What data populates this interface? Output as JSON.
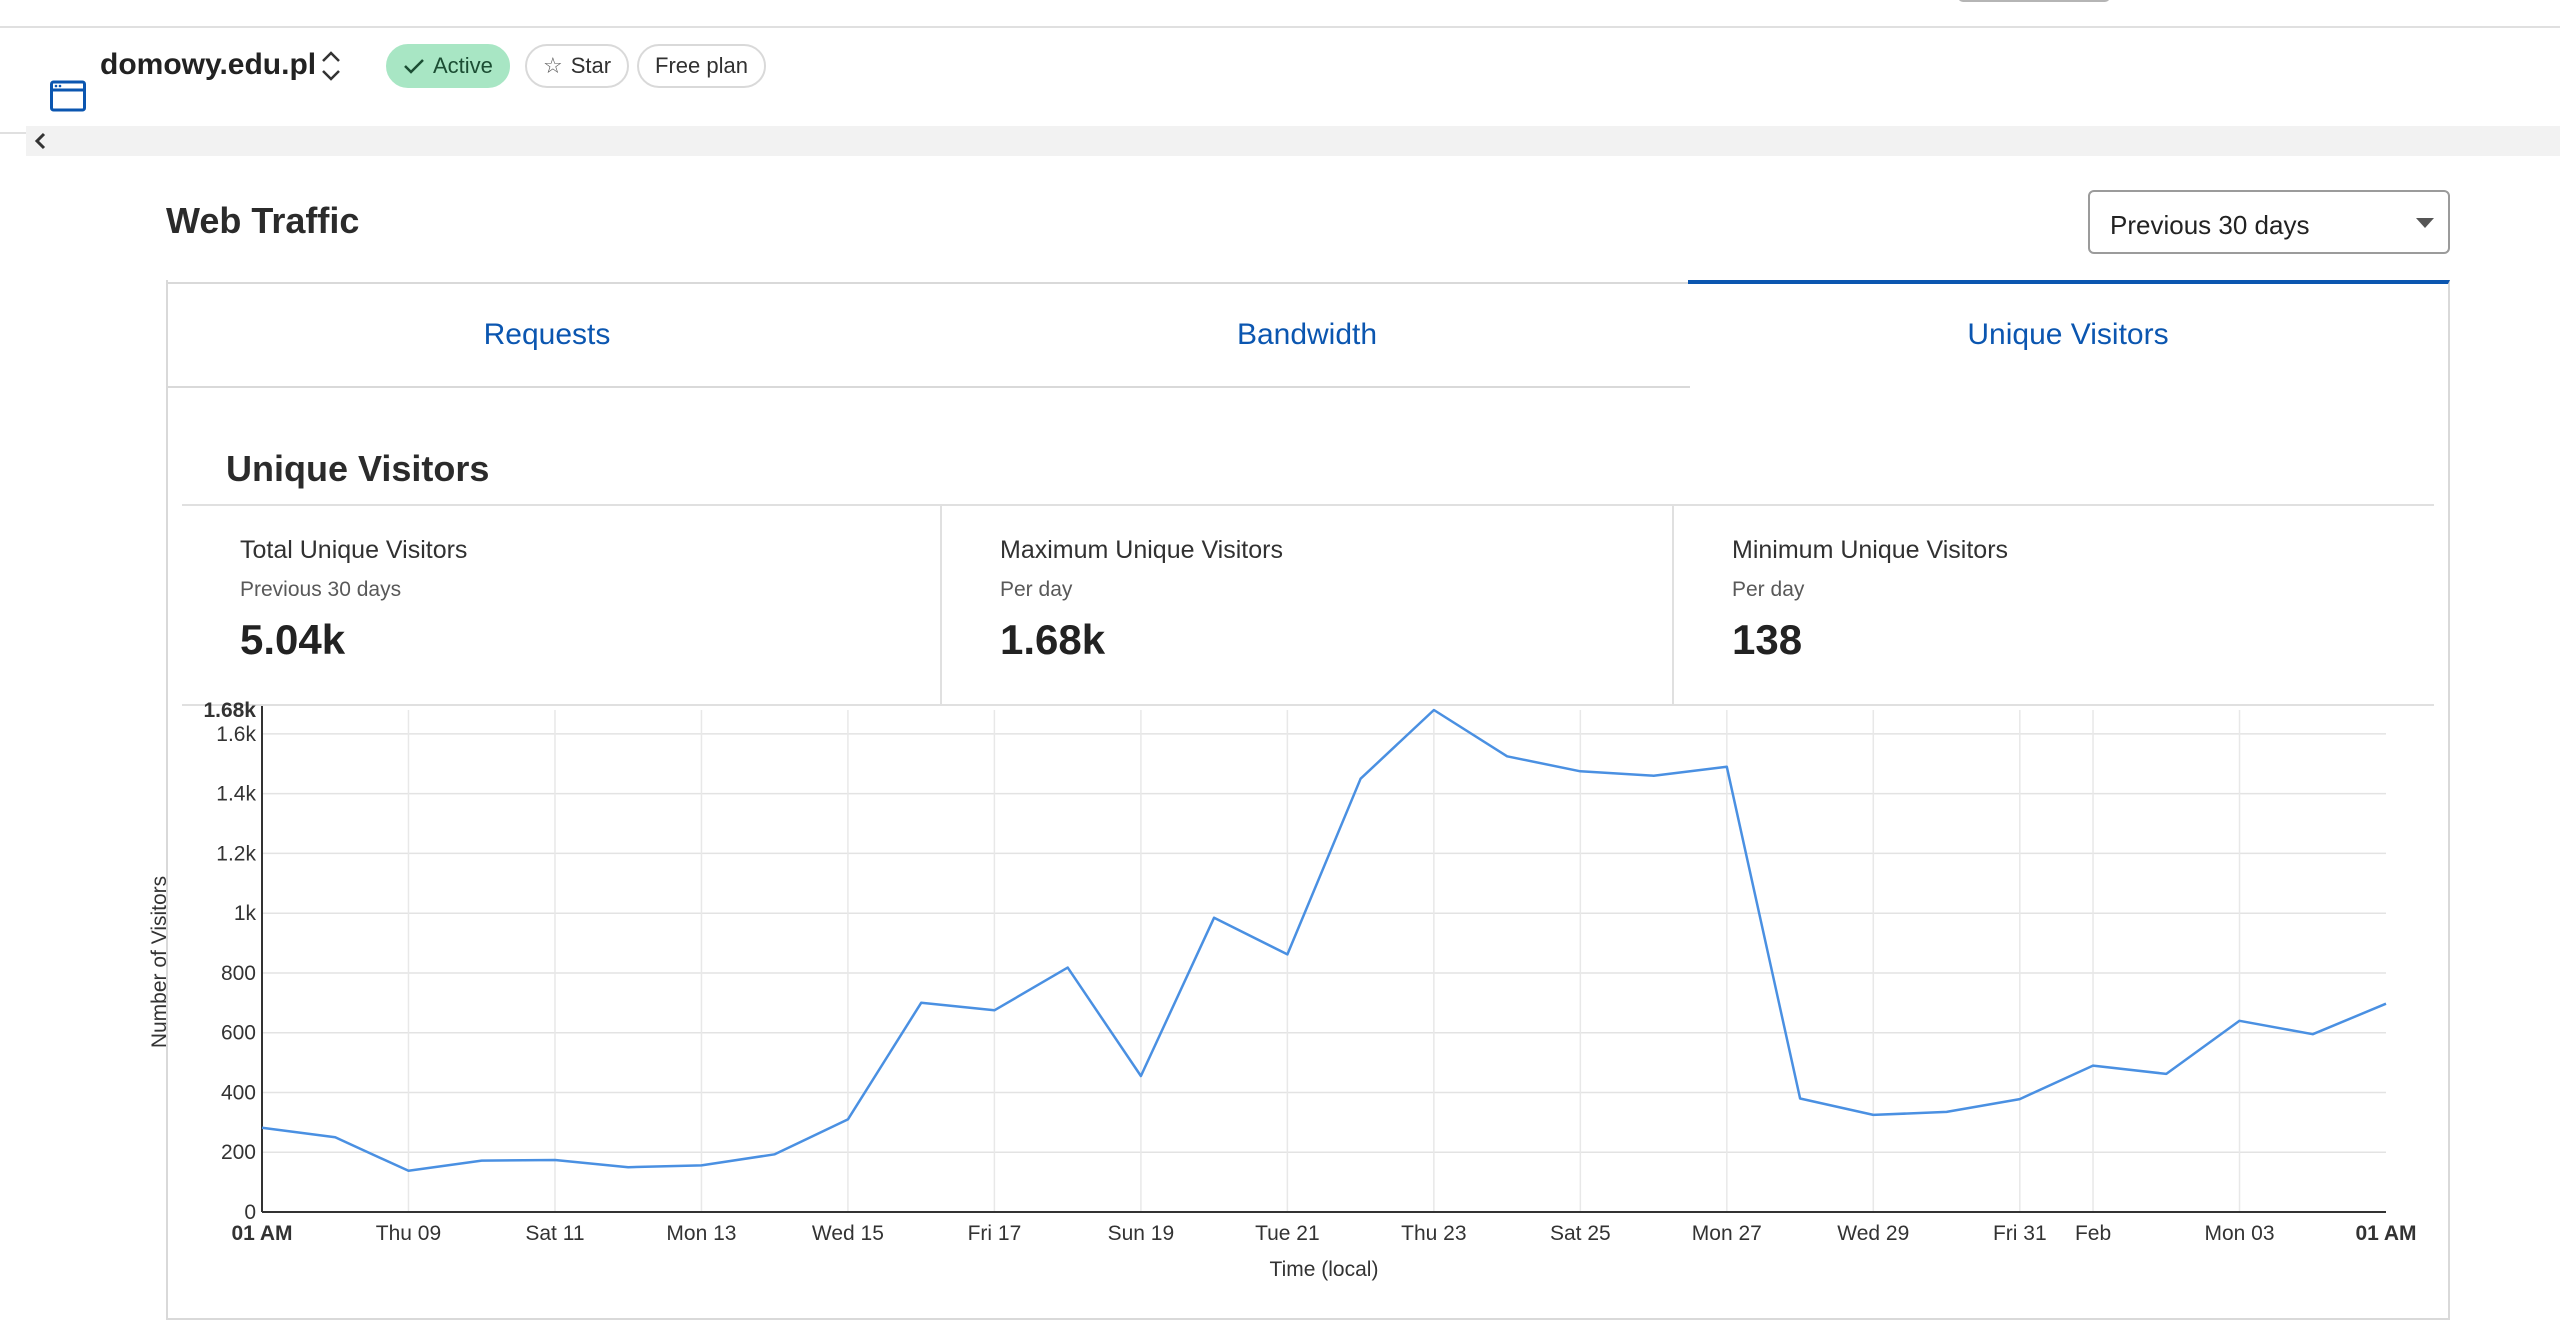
{
  "site": {
    "name": "domowy.edu.pl",
    "status": "Active",
    "star_label": "Star",
    "plan": "Free plan"
  },
  "page": {
    "title": "Web Traffic",
    "range": "Previous 30 days"
  },
  "tabs": [
    {
      "label": "Requests",
      "active": false
    },
    {
      "label": "Bandwidth",
      "active": false
    },
    {
      "label": "Unique Visitors",
      "active": true
    }
  ],
  "section": {
    "title": "Unique Visitors"
  },
  "stats": [
    {
      "name": "Total Unique Visitors",
      "sub": "Previous 30 days",
      "value": "5.04k"
    },
    {
      "name": "Maximum Unique Visitors",
      "sub": "Per day",
      "value": "1.68k"
    },
    {
      "name": "Minimum Unique Visitors",
      "sub": "Per day",
      "value": "138"
    }
  ],
  "colors": {
    "accent": "#0b56b0",
    "line": "#4a90e2",
    "active_badge": "#a8e6c4"
  },
  "chart_data": {
    "type": "line",
    "ylabel": "Number of Visitors",
    "xlabel": "Time (local)",
    "ylim": [
      0,
      1680
    ],
    "y_ticks": [
      {
        "v": 0,
        "label": "0"
      },
      {
        "v": 200,
        "label": "200"
      },
      {
        "v": 400,
        "label": "400"
      },
      {
        "v": 600,
        "label": "600"
      },
      {
        "v": 800,
        "label": "800"
      },
      {
        "v": 1000,
        "label": "1k"
      },
      {
        "v": 1200,
        "label": "1.2k"
      },
      {
        "v": 1400,
        "label": "1.4k"
      },
      {
        "v": 1600,
        "label": "1.6k"
      },
      {
        "v": 1680,
        "label": "1.68k",
        "bold": true
      }
    ],
    "x_ticks": [
      {
        "i": 0,
        "label": "01 AM",
        "bold": true
      },
      {
        "i": 2,
        "label": "Thu 09"
      },
      {
        "i": 4,
        "label": "Sat 11"
      },
      {
        "i": 6,
        "label": "Mon 13"
      },
      {
        "i": 8,
        "label": "Wed 15"
      },
      {
        "i": 10,
        "label": "Fri 17"
      },
      {
        "i": 12,
        "label": "Sun 19"
      },
      {
        "i": 14,
        "label": "Tue 21"
      },
      {
        "i": 16,
        "label": "Thu 23"
      },
      {
        "i": 18,
        "label": "Sat 25"
      },
      {
        "i": 20,
        "label": "Mon 27"
      },
      {
        "i": 22,
        "label": "Wed 29"
      },
      {
        "i": 24,
        "label": "Fri 31"
      },
      {
        "i": 25,
        "label": "Feb"
      },
      {
        "i": 27,
        "label": "Mon 03"
      },
      {
        "i": 29,
        "label": "01 AM",
        "bold": true
      }
    ],
    "series": [
      {
        "values": [
          282,
          250,
          138,
          172,
          174,
          150,
          156,
          193,
          310,
          700,
          675,
          818,
          455,
          985,
          862,
          1450,
          1680,
          1525,
          1475,
          1460,
          1490,
          380,
          325,
          335,
          378,
          490,
          462,
          640,
          595,
          697
        ]
      }
    ],
    "grid": true,
    "legend": "none"
  }
}
